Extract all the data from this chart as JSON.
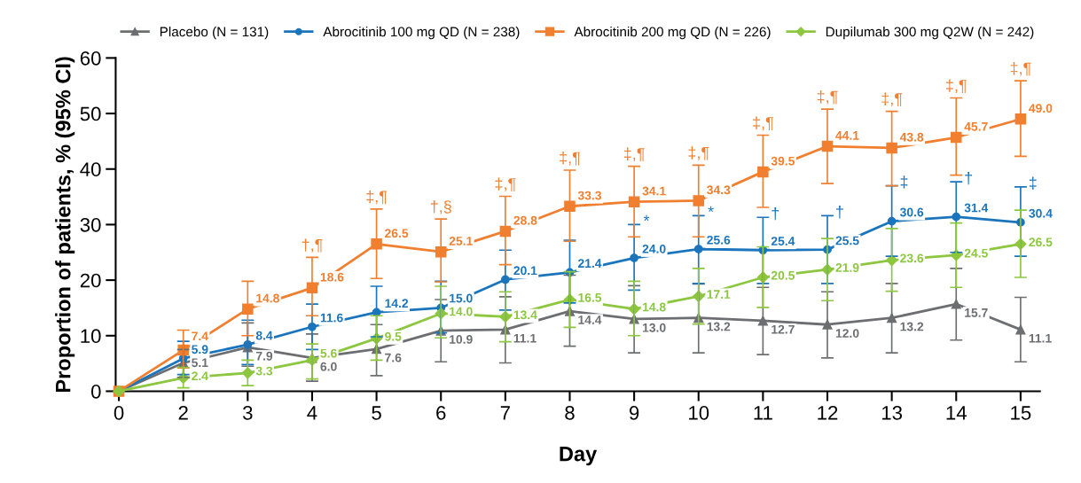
{
  "chart_data": {
    "type": "line",
    "xlabel": "Day",
    "ylabel": "Proportion of patients, % (95% CI)",
    "categories": [
      "0",
      "2",
      "3",
      "4",
      "5",
      "6",
      "7",
      "8",
      "9",
      "10",
      "11",
      "12",
      "13",
      "14",
      "15"
    ],
    "ylim": [
      0,
      60
    ],
    "yticks": [
      0,
      10,
      20,
      30,
      40,
      50,
      60
    ],
    "grid": false,
    "legend": "top",
    "line_style": "solid",
    "series": [
      {
        "name": "Placebo (N = 131)",
        "color": "#6d6e71",
        "marker": "triangle",
        "values": [
          0,
          5.1,
          7.9,
          6.0,
          7.6,
          10.9,
          11.1,
          14.4,
          13.0,
          13.2,
          12.7,
          12.0,
          13.2,
          15.7,
          11.1
        ],
        "errors": [
          null,
          [
            2.5,
            7.5
          ],
          [
            4.5,
            12.3
          ],
          [
            1.8,
            10.3
          ],
          [
            2.8,
            12.0
          ],
          [
            5.3,
            16.5
          ],
          [
            5.1,
            17.0
          ],
          [
            8.1,
            20.9
          ],
          [
            6.9,
            19.0
          ],
          [
            6.9,
            19.3
          ],
          [
            6.6,
            18.7
          ],
          [
            6.0,
            17.9
          ],
          [
            6.9,
            19.4
          ],
          [
            9.2,
            22.1
          ],
          [
            5.3,
            16.9
          ]
        ],
        "value_labels": [
          null,
          "5.1",
          "7.9",
          "6.0",
          "7.6",
          "10.9",
          "11.1",
          "14.4",
          "13.0",
          "13.2",
          "12.7",
          "12.0",
          "13.2",
          "15.7",
          "11.1"
        ]
      },
      {
        "name": "Abrocitinib 100 mg QD (N = 238)",
        "color": "#1a75bc",
        "marker": "circle",
        "values": [
          0,
          5.9,
          8.4,
          11.6,
          14.2,
          15.0,
          20.1,
          21.4,
          24.0,
          25.6,
          25.4,
          25.5,
          30.6,
          31.4,
          30.4
        ],
        "errors": [
          null,
          [
            3.0,
            9.0
          ],
          [
            4.8,
            12.8
          ],
          [
            7.5,
            15.7
          ],
          [
            9.8,
            18.9
          ],
          [
            10.5,
            19.8
          ],
          [
            14.6,
            25.4
          ],
          [
            15.9,
            27.2
          ],
          [
            18.2,
            30.0
          ],
          [
            19.4,
            31.6
          ],
          [
            19.4,
            31.3
          ],
          [
            19.4,
            31.6
          ],
          [
            24.3,
            37.0
          ],
          [
            25.0,
            37.7
          ],
          [
            24.3,
            36.8
          ]
        ],
        "value_labels": [
          null,
          "5.9",
          "8.4",
          "11.6",
          "14.2",
          "15.0",
          "20.1",
          "21.4",
          "24.0",
          "25.6",
          "25.4",
          "25.5",
          "30.6",
          "31.4",
          "30.4"
        ]
      },
      {
        "name": "Abrocitinib 200 mg QD (N = 226)",
        "color": "#f07f2f",
        "marker": "square",
        "values": [
          0,
          7.4,
          14.8,
          18.6,
          26.5,
          25.1,
          28.8,
          33.3,
          34.1,
          34.3,
          39.5,
          44.1,
          43.8,
          45.7,
          49.0
        ],
        "errors": [
          null,
          [
            4.2,
            11.0
          ],
          [
            10.0,
            19.8
          ],
          [
            13.6,
            24.1
          ],
          [
            20.3,
            32.8
          ],
          [
            19.7,
            31.0
          ],
          [
            22.8,
            35.1
          ],
          [
            27.0,
            39.8
          ],
          [
            27.8,
            40.5
          ],
          [
            27.8,
            40.7
          ],
          [
            33.1,
            46.1
          ],
          [
            37.4,
            50.8
          ],
          [
            37.0,
            50.4
          ],
          [
            38.9,
            52.8
          ],
          [
            42.3,
            55.9
          ]
        ],
        "value_labels": [
          null,
          "7.4",
          "14.8",
          "18.6",
          "26.5",
          "25.1",
          "28.8",
          "33.3",
          "34.1",
          "34.3",
          "39.5",
          "44.1",
          "43.8",
          "45.7",
          "49.0"
        ]
      },
      {
        "name": "Dupilumab 300 mg Q2W (N = 242)",
        "color": "#8dc63f",
        "marker": "diamond",
        "values": [
          0,
          2.4,
          3.3,
          5.6,
          9.5,
          14.0,
          13.4,
          16.5,
          14.8,
          17.1,
          20.5,
          21.9,
          23.6,
          24.5,
          26.5
        ],
        "errors": [
          null,
          [
            0.6,
            4.3
          ],
          [
            1.0,
            5.6
          ],
          [
            2.2,
            8.5
          ],
          [
            5.6,
            13.6
          ],
          [
            9.6,
            18.9
          ],
          [
            8.9,
            17.9
          ],
          [
            11.5,
            21.5
          ],
          [
            10.0,
            19.8
          ],
          [
            12.1,
            22.1
          ],
          [
            15.1,
            26.0
          ],
          [
            16.3,
            27.5
          ],
          [
            18.0,
            29.3
          ],
          [
            18.7,
            30.3
          ],
          [
            20.5,
            32.6
          ]
        ],
        "value_labels": [
          null,
          "2.4",
          "3.3",
          "5.6",
          "9.5",
          "14.0",
          "13.4",
          "16.5",
          "14.8",
          "17.1",
          "20.5",
          "21.9",
          "23.6",
          "24.5",
          "26.5"
        ]
      }
    ],
    "annotations": [
      {
        "text": "†,¶",
        "x": "4",
        "y": 24.1
      },
      {
        "text": "‡,¶",
        "x": "5",
        "y": 32.8
      },
      {
        "text": "†,§",
        "x": "6",
        "y": 31.0
      },
      {
        "text": "‡,¶",
        "x": "7",
        "y": 35.1
      },
      {
        "text": "‡,¶",
        "x": "8",
        "y": 39.8
      },
      {
        "text": "‡,¶",
        "x": "9",
        "y": 40.5
      },
      {
        "text": "‡,¶",
        "x": "10",
        "y": 40.7
      },
      {
        "text": "‡,¶",
        "x": "11",
        "y": 46.1
      },
      {
        "text": "‡,¶",
        "x": "12",
        "y": 50.8
      },
      {
        "text": "‡,¶",
        "x": "13",
        "y": 50.4
      },
      {
        "text": "‡,¶",
        "x": "14",
        "y": 52.8
      },
      {
        "text": "‡,¶",
        "x": "15",
        "y": 55.9
      },
      {
        "text": "*",
        "x": "9",
        "y": 30.0
      },
      {
        "text": "*",
        "x": "10",
        "y": 31.6
      },
      {
        "text": "†",
        "x": "11",
        "y": 31.3
      },
      {
        "text": "†",
        "x": "12",
        "y": 31.6
      },
      {
        "text": "‡",
        "x": "13",
        "y": 37.0
      },
      {
        "text": "†",
        "x": "14",
        "y": 37.7
      },
      {
        "text": "‡",
        "x": "15",
        "y": 36.8
      }
    ]
  }
}
